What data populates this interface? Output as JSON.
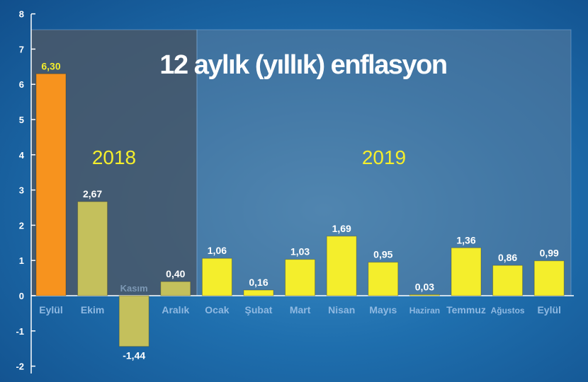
{
  "chart_data": {
    "type": "bar",
    "title": "12 aylık (yıllık) enflasyon",
    "periods": [
      {
        "label": "2018",
        "first": 0,
        "last": 3
      },
      {
        "label": "2019",
        "first": 4,
        "last": 12
      }
    ],
    "categories": [
      "Eylül",
      "Ekim",
      "Kasım",
      "Aralık",
      "Ocak",
      "Şubat",
      "Mart",
      "Nisan",
      "Mayıs",
      "Haziran",
      "Temmuz",
      "Ağustos",
      "Eylül"
    ],
    "values": [
      6.3,
      2.67,
      -1.44,
      0.4,
      1.06,
      0.16,
      1.03,
      1.69,
      0.95,
      0.03,
      1.36,
      0.86,
      0.99
    ],
    "value_labels": [
      "6,30",
      "2,67",
      "-1,44",
      "0,40",
      "1,06",
      "0,16",
      "1,03",
      "1,69",
      "0,95",
      "0,03",
      "1,36",
      "0,86",
      "0,99"
    ],
    "yticks": [
      "-2",
      "-1",
      "0",
      "1",
      "2",
      "3",
      "4",
      "5",
      "6",
      "7",
      "8"
    ],
    "ylim": [
      -2,
      8
    ],
    "xlabel": "",
    "ylabel": "",
    "grid": false,
    "legend": "none",
    "colors": {
      "highlight_bar": "#f7931e",
      "bar_2018": "#c4c05c",
      "bar_2019": "#f4ee2c",
      "panel_2018": "#4a5868",
      "panel_2019": "#5f7d9c",
      "category_text": "#8fb9e2",
      "highlight_text": "#f4ee2c"
    }
  }
}
